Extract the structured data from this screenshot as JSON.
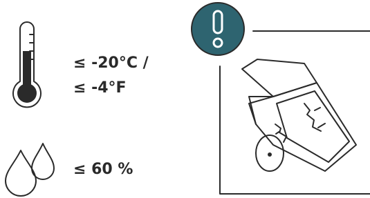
{
  "conditions": [
    {
      "lines": [
        "≤ -20°C /",
        "≤ -4°F"
      ]
    },
    {
      "lines": [
        "≤ 60 %"
      ]
    }
  ]
}
